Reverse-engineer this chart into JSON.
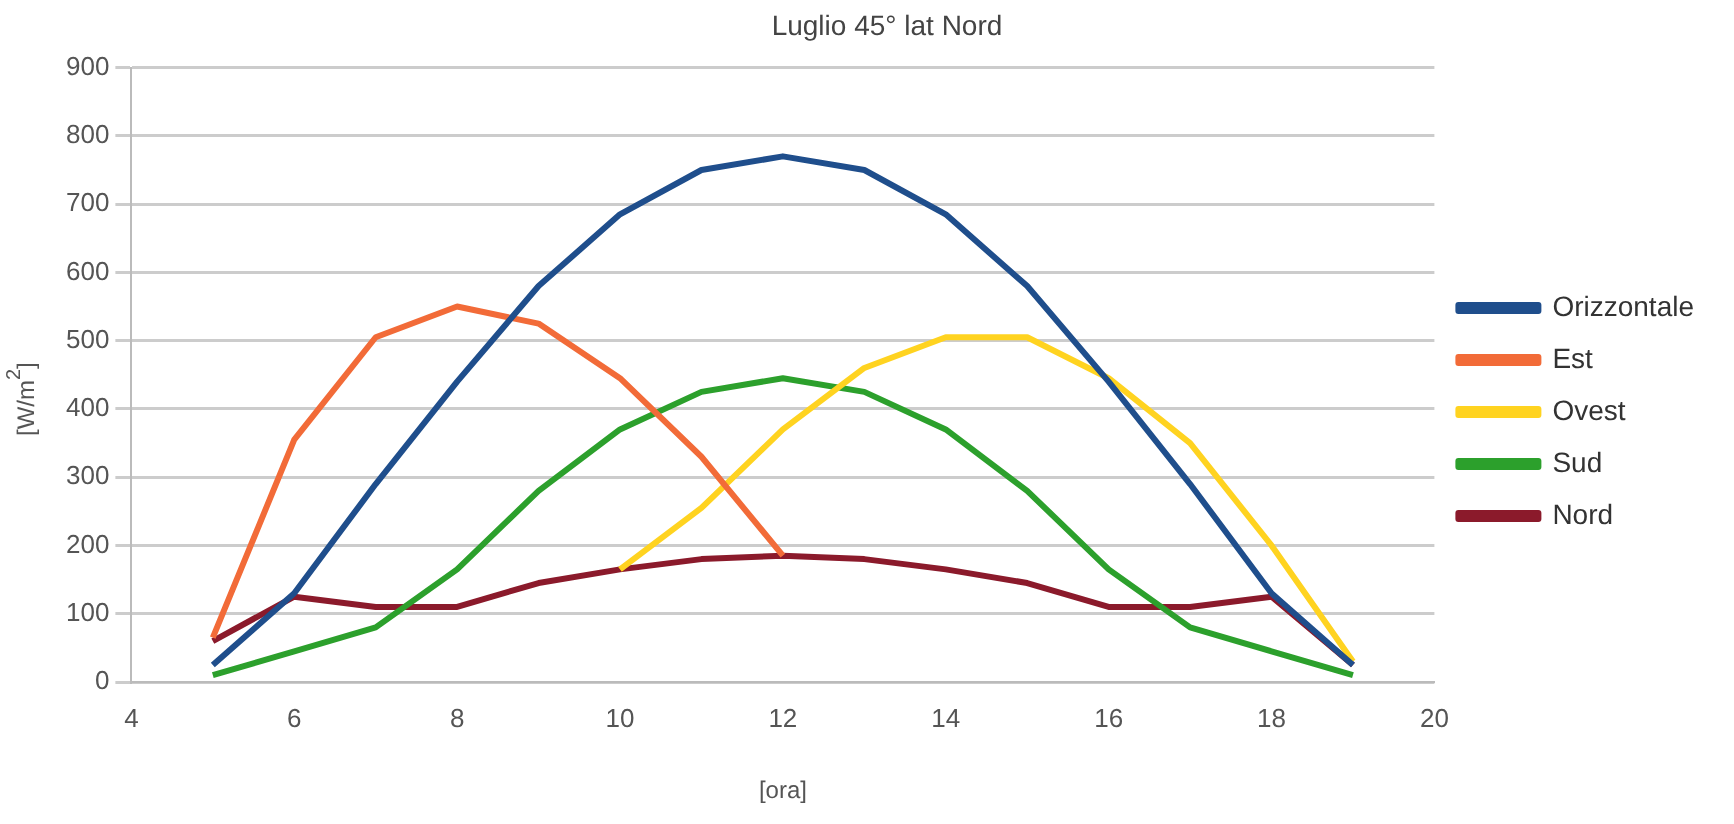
{
  "chart_data": {
    "type": "line",
    "title": "Luglio 45° lat Nord",
    "xlabel": "[ora]",
    "ylabel": "[W/m$^{2}$]",
    "xlim": [
      4,
      20
    ],
    "xticks": [
      4,
      6,
      8,
      10,
      12,
      14,
      16,
      18,
      20
    ],
    "ylim": [
      0,
      900
    ],
    "yticks": [
      0,
      100,
      200,
      300,
      400,
      500,
      600,
      700,
      800,
      900
    ],
    "grid": "y",
    "legend": "right",
    "marker": "none",
    "line_style": "solid",
    "series": [
      {
        "name": "Orizzontale",
        "color": "#1f4e8c",
        "x": [
          5,
          6,
          7,
          8,
          9,
          10,
          11,
          12,
          13,
          14,
          15,
          16,
          17,
          18,
          19
        ],
        "values": [
          25,
          130,
          290,
          440,
          580,
          685,
          750,
          770,
          750,
          685,
          580,
          440,
          290,
          130,
          25
        ]
      },
      {
        "name": "Est",
        "color": "#f26b38",
        "x": [
          5,
          6,
          7,
          8,
          9,
          10,
          11,
          12
        ],
        "values": [
          65,
          355,
          505,
          550,
          525,
          445,
          330,
          185
        ]
      },
      {
        "name": "Ovest",
        "color": "#ffd320",
        "x": [
          10,
          11,
          12,
          13,
          14,
          15,
          16,
          17,
          18,
          19
        ],
        "values": [
          165,
          255,
          370,
          460,
          505,
          505,
          445,
          350,
          200,
          30
        ]
      },
      {
        "name": "Sud",
        "color": "#2ca02c",
        "x": [
          5,
          6,
          7,
          8,
          9,
          10,
          11,
          12,
          13,
          14,
          15,
          16,
          17,
          18,
          19
        ],
        "values": [
          10,
          45,
          80,
          165,
          280,
          370,
          425,
          445,
          425,
          370,
          280,
          165,
          80,
          45,
          10
        ]
      },
      {
        "name": "Nord",
        "color": "#8b1a2b",
        "x": [
          5,
          6,
          7,
          8,
          9,
          10,
          11,
          12,
          13,
          14,
          15,
          16,
          17,
          18,
          19
        ],
        "values": [
          60,
          125,
          110,
          110,
          145,
          165,
          180,
          185,
          180,
          165,
          145,
          110,
          110,
          125,
          25
        ]
      }
    ]
  }
}
